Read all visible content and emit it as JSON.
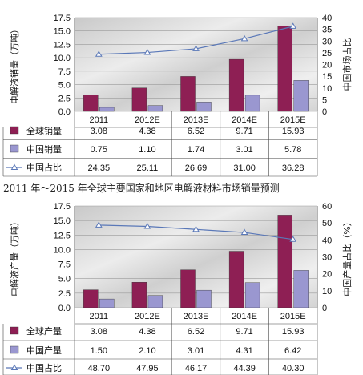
{
  "caption": "2011 年～2015 年全球主要国家和地区电解液材料市场销量预测",
  "colors": {
    "global_bar": "#8e1f54",
    "china_bar": "#9a97d0",
    "line": "#5a78b8",
    "grid": "#9a9a9a"
  },
  "chart_data": [
    {
      "type": "bar",
      "categories": [
        "2011",
        "2012E",
        "2013E",
        "2014E",
        "2015E"
      ],
      "ylabel": "电解液销量（万吨）",
      "y2label": "中国市场占比",
      "ylim": [
        0,
        17.5
      ],
      "y2lim": [
        0,
        40
      ],
      "yticks": [
        "0.0",
        "2.5",
        "5.0",
        "7.5",
        "10.0",
        "12.5",
        "15.0",
        "17.5"
      ],
      "y2ticks": [
        "0",
        "5",
        "10",
        "15",
        "20",
        "25",
        "30",
        "35",
        "40"
      ],
      "series": [
        {
          "name": "全球销量",
          "type": "bar",
          "values": [
            3.08,
            4.38,
            6.52,
            9.71,
            15.93
          ],
          "labels": [
            "3.08",
            "4.38",
            "6.52",
            "9.71",
            "15.93"
          ]
        },
        {
          "name": "中国销量",
          "type": "bar",
          "values": [
            0.75,
            1.1,
            1.74,
            3.01,
            5.78
          ],
          "labels": [
            "0.75",
            "1.10",
            "1.74",
            "3.01",
            "5.78"
          ]
        },
        {
          "name": "中国占比",
          "type": "line",
          "axis": "right",
          "values": [
            24.35,
            25.11,
            26.69,
            31.0,
            36.28
          ],
          "labels": [
            "24.35",
            "25.11",
            "26.69",
            "31.00",
            "36.28"
          ]
        }
      ]
    },
    {
      "type": "bar",
      "categories": [
        "2011",
        "2012E",
        "2013E",
        "2014E",
        "2015E"
      ],
      "ylabel": "电解液产量（万吨）",
      "y2label": "中国产量占比（%）",
      "ylim": [
        0,
        17.5
      ],
      "y2lim": [
        0,
        60
      ],
      "yticks": [
        "0.0",
        "2.5",
        "5.0",
        "7.5",
        "10.0",
        "12.5",
        "15.0",
        "17.5"
      ],
      "y2ticks": [
        "0",
        "10",
        "20",
        "30",
        "40",
        "50",
        "60"
      ],
      "series": [
        {
          "name": "全球产量",
          "type": "bar",
          "values": [
            3.08,
            4.38,
            6.52,
            9.71,
            15.93
          ],
          "labels": [
            "3.08",
            "4.38",
            "6.52",
            "9.71",
            "15.93"
          ]
        },
        {
          "name": "中国产量",
          "type": "bar",
          "values": [
            1.5,
            2.1,
            3.01,
            4.31,
            6.42
          ],
          "labels": [
            "1.50",
            "2.10",
            "3.01",
            "4.31",
            "6.42"
          ]
        },
        {
          "name": "中国占比",
          "type": "line",
          "axis": "right",
          "values": [
            48.7,
            47.95,
            46.17,
            44.39,
            40.3
          ],
          "labels": [
            "48.70",
            "47.95",
            "46.17",
            "44.39",
            "40.30"
          ]
        }
      ]
    }
  ]
}
